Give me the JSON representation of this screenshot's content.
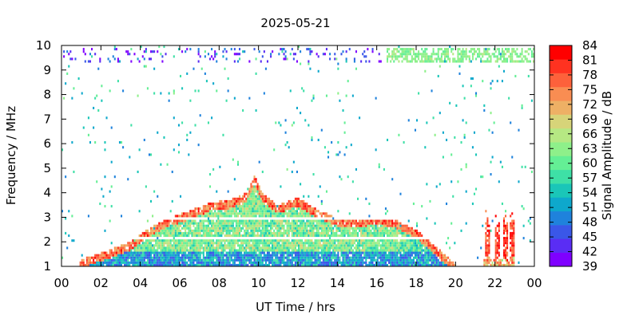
{
  "chart_data": {
    "type": "heatmap",
    "title": "2025-05-21",
    "xlabel": "UT Time / hrs",
    "ylabel": "Frequency / MHz",
    "colorbar_label": "Signal Amplitude / dB",
    "xlim": [
      0,
      24
    ],
    "ylim": [
      1,
      10
    ],
    "x_ticks": [
      "00",
      "02",
      "04",
      "06",
      "08",
      "10",
      "12",
      "14",
      "16",
      "18",
      "20",
      "22",
      "00"
    ],
    "y_ticks": [
      "1",
      "2",
      "3",
      "4",
      "5",
      "6",
      "7",
      "8",
      "9",
      "10"
    ],
    "colorbar_ticks": [
      "39",
      "42",
      "45",
      "48",
      "51",
      "54",
      "57",
      "60",
      "63",
      "66",
      "69",
      "72",
      "75",
      "78",
      "81",
      "84"
    ],
    "colorbar_range": [
      39,
      84
    ],
    "colorscale": [
      "#7f00ff",
      "#5a2df4",
      "#3a57e8",
      "#1f82dc",
      "#0ea8cc",
      "#1ac6b8",
      "#3ee0a6",
      "#64ef95",
      "#8ef08a",
      "#b6e883",
      "#d7d479",
      "#eeb065",
      "#f98d52",
      "#fd613b",
      "#ff3220",
      "#ff0000"
    ],
    "grid": false,
    "data_regions": [
      {
        "name": "daytime band",
        "start_hr": 0.9,
        "end_hr": 20.0,
        "peak_mhz": 4.7,
        "min_db": 39,
        "max_db": 84
      },
      {
        "name": "evening bursts",
        "start_hr": 21.4,
        "end_hr": 23.0,
        "peak_mhz": 3.4,
        "min_db": 45,
        "max_db": 84
      },
      {
        "name": "upper band noise",
        "start_hr": 0,
        "end_hr": 24,
        "low_mhz": 9.3,
        "high_mhz": 9.9,
        "min_db": 39,
        "max_db": 66
      }
    ]
  }
}
